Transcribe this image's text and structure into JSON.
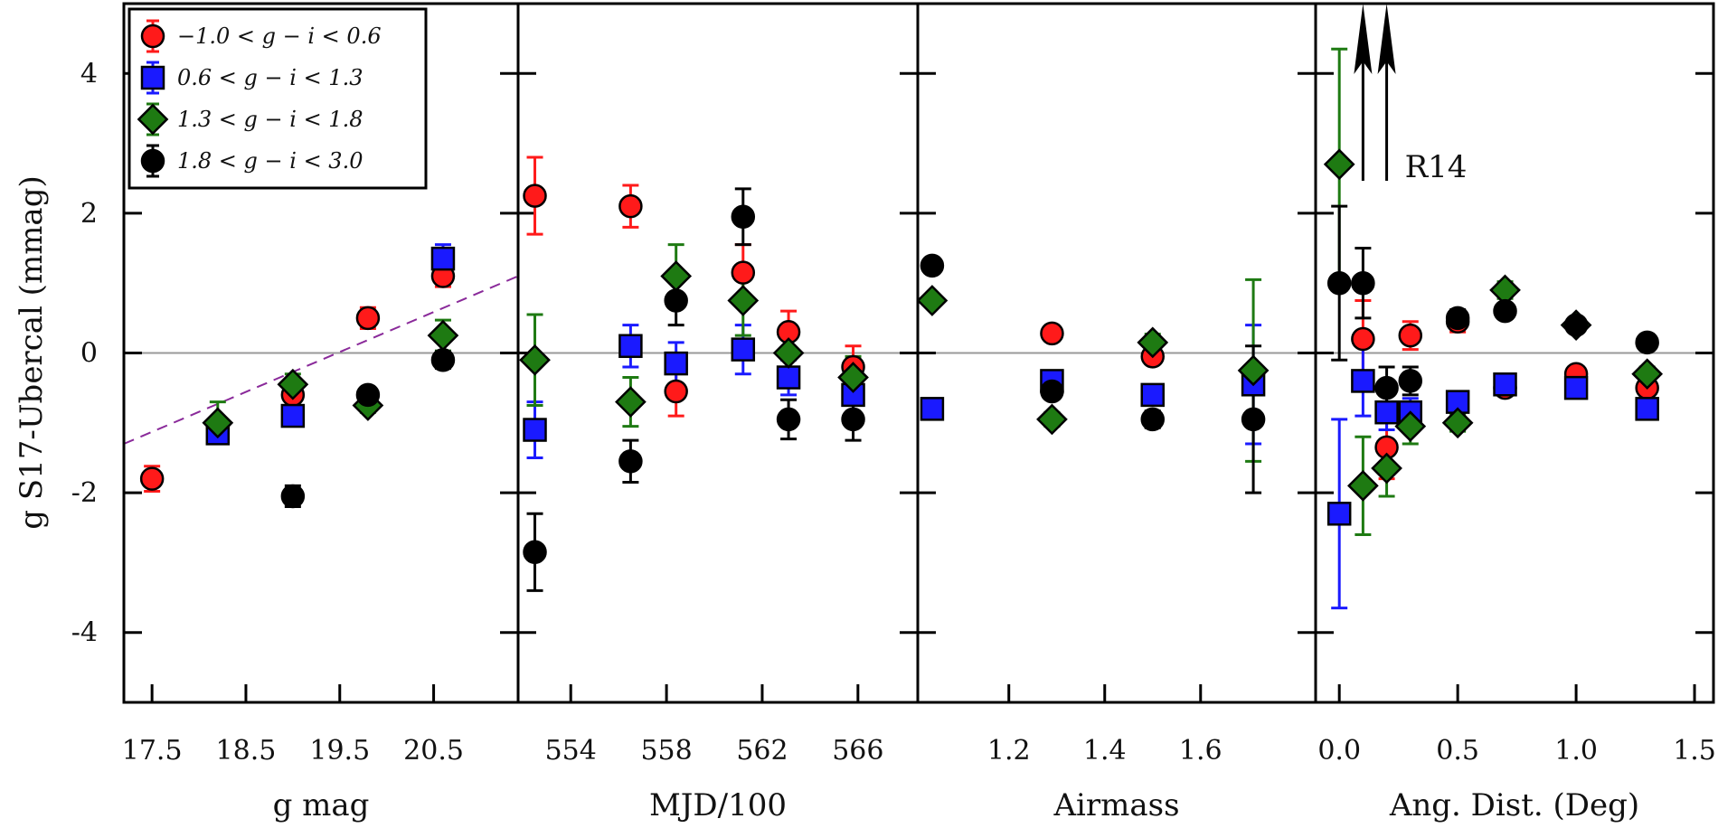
{
  "chart_data": {
    "type": "scatter",
    "ylabel": "g S17-Ubercal (mmag)",
    "ylim": [
      -5,
      5
    ],
    "yticks": [
      4,
      2,
      0,
      -2,
      -4
    ],
    "series_info": [
      {
        "key": "red",
        "name": "−1.0 < g − i < 0.6",
        "color": "#ff1a1a",
        "marker": "circle"
      },
      {
        "key": "blue",
        "name": "0.6 < g − i < 1.3",
        "color": "#1a1aff",
        "marker": "square"
      },
      {
        "key": "green",
        "name": "1.3 < g − i < 1.8",
        "color": "#1e7a12",
        "marker": "diamond"
      },
      {
        "key": "black",
        "name": "1.8 < g − i < 3.0",
        "color": "#000000",
        "marker": "circle"
      }
    ],
    "legend_position": "top-left",
    "panels": [
      {
        "xlabel": "g mag",
        "xlim": [
          17.2,
          21.4
        ],
        "xticks": [
          17.5,
          18.5,
          19.5,
          20.5
        ],
        "xticklabels": [
          "17.5",
          "18.5",
          "19.5",
          "20.5"
        ],
        "reference_line": {
          "x": [
            17.2,
            21.4
          ],
          "y": [
            -1.3,
            1.1
          ],
          "style": "dashed",
          "color": "#8a2a9a"
        },
        "series": {
          "red": [
            [
              17.5,
              -1.8,
              0.18
            ],
            [
              18.2,
              -1.05,
              0.12
            ],
            [
              19.0,
              -0.6,
              0.1
            ],
            [
              19.8,
              0.5,
              0.15
            ],
            [
              20.6,
              1.1,
              0.15
            ]
          ],
          "blue": [
            [
              18.2,
              -1.15,
              0.12
            ],
            [
              19.0,
              -0.9,
              0.1
            ],
            [
              20.6,
              1.35,
              0.2
            ]
          ],
          "green": [
            [
              18.2,
              -1.0,
              0.3
            ],
            [
              19.0,
              -0.45,
              0.15
            ],
            [
              19.8,
              -0.75,
              0.1
            ],
            [
              20.6,
              0.25,
              0.22
            ]
          ],
          "black": [
            [
              19.0,
              -2.05,
              0.15
            ],
            [
              19.8,
              -0.6,
              0.1
            ],
            [
              20.6,
              -0.1,
              0.12
            ]
          ]
        }
      },
      {
        "xlabel": "MJD/100",
        "xlim": [
          551.8,
          568.5
        ],
        "xticks": [
          554,
          558,
          562,
          566
        ],
        "xticklabels": [
          "554",
          "558",
          "562",
          "566"
        ],
        "series": {
          "red": [
            [
              552.5,
              2.25,
              0.55
            ],
            [
              556.5,
              2.1,
              0.3
            ],
            [
              558.4,
              -0.55,
              0.35
            ],
            [
              561.2,
              1.15,
              0.4
            ],
            [
              563.1,
              0.3,
              0.3
            ],
            [
              565.8,
              -0.2,
              0.3
            ]
          ],
          "blue": [
            [
              552.5,
              -1.1,
              0.4
            ],
            [
              556.5,
              0.1,
              0.3
            ],
            [
              558.4,
              -0.15,
              0.3
            ],
            [
              561.2,
              0.05,
              0.35
            ],
            [
              563.1,
              -0.35,
              0.25
            ],
            [
              565.8,
              -0.6,
              0.3
            ]
          ],
          "green": [
            [
              552.5,
              -0.1,
              0.65
            ],
            [
              556.5,
              -0.7,
              0.35
            ],
            [
              558.4,
              1.1,
              0.45
            ],
            [
              561.2,
              0.75,
              0.5
            ],
            [
              563.1,
              0.0,
              0.2
            ],
            [
              565.8,
              -0.35,
              0.3
            ]
          ],
          "black": [
            [
              552.5,
              -2.85,
              0.55
            ],
            [
              556.5,
              -1.55,
              0.3
            ],
            [
              558.4,
              0.75,
              0.35
            ],
            [
              561.2,
              1.95,
              0.4
            ],
            [
              563.1,
              -0.95,
              0.28
            ],
            [
              565.8,
              -0.95,
              0.3
            ]
          ]
        }
      },
      {
        "xlabel": "Airmass",
        "xlim": [
          1.01,
          1.84
        ],
        "xticks": [
          1.2,
          1.4,
          1.6
        ],
        "xticklabels": [
          "1.2",
          "1.4",
          "1.6"
        ],
        "series": {
          "red": [
            [
              1.29,
              0.28,
              0.08
            ],
            [
              1.5,
              -0.05,
              0.1
            ]
          ],
          "blue": [
            [
              1.04,
              -0.8,
              0.08
            ],
            [
              1.29,
              -0.4,
              0.08
            ],
            [
              1.5,
              -0.6,
              0.1
            ],
            [
              1.71,
              -0.45,
              0.85
            ]
          ],
          "green": [
            [
              1.04,
              0.75,
              0.08
            ],
            [
              1.29,
              -0.95,
              0.1
            ],
            [
              1.5,
              0.15,
              0.12
            ],
            [
              1.71,
              -0.25,
              1.3
            ]
          ],
          "black": [
            [
              1.04,
              1.25,
              0.08
            ],
            [
              1.29,
              -0.55,
              0.08
            ],
            [
              1.5,
              -0.95,
              0.12
            ],
            [
              1.71,
              -0.95,
              1.05
            ]
          ]
        }
      },
      {
        "xlabel": "Ang. Dist. (Deg)",
        "xlim": [
          -0.1,
          1.58
        ],
        "xticks": [
          0.0,
          0.5,
          1.0,
          1.5
        ],
        "xticklabels": [
          "0.0",
          "0.5",
          "1.0",
          "1.5"
        ],
        "annotation": {
          "text": "R14",
          "arrows_x": [
            0.1,
            0.2
          ]
        },
        "series": {
          "red": [
            [
              0.1,
              0.2,
              0.55
            ],
            [
              0.2,
              -1.35,
              0.45
            ],
            [
              0.3,
              0.25,
              0.2
            ],
            [
              0.5,
              0.45,
              0.15
            ],
            [
              0.7,
              -0.5,
              0.1
            ],
            [
              1.0,
              -0.3,
              0.1
            ],
            [
              1.3,
              -0.5,
              0.1
            ]
          ],
          "blue": [
            [
              0.0,
              -2.3,
              1.35
            ],
            [
              0.1,
              -0.4,
              0.5
            ],
            [
              0.2,
              -0.85,
              0.25
            ],
            [
              0.3,
              -0.85,
              0.2
            ],
            [
              0.5,
              -0.7,
              0.12
            ],
            [
              0.7,
              -0.45,
              0.1
            ],
            [
              1.0,
              -0.5,
              0.1
            ],
            [
              1.3,
              -0.8,
              0.1
            ]
          ],
          "green": [
            [
              0.0,
              2.7,
              1.65
            ],
            [
              0.1,
              -1.9,
              0.7
            ],
            [
              0.2,
              -1.65,
              0.4
            ],
            [
              0.3,
              -1.05,
              0.25
            ],
            [
              0.5,
              -1.0,
              0.12
            ],
            [
              0.7,
              0.9,
              0.12
            ],
            [
              1.0,
              0.4,
              0.1
            ],
            [
              1.3,
              -0.3,
              0.1
            ]
          ],
          "black": [
            [
              0.0,
              1.0,
              1.1
            ],
            [
              0.1,
              1.0,
              0.5
            ],
            [
              0.2,
              -0.5,
              0.3
            ],
            [
              0.3,
              -0.4,
              0.2
            ],
            [
              0.5,
              0.5,
              0.12
            ],
            [
              0.7,
              0.6,
              0.1
            ],
            [
              1.0,
              0.4,
              0.1
            ],
            [
              1.3,
              0.15,
              0.1
            ]
          ]
        }
      }
    ]
  }
}
